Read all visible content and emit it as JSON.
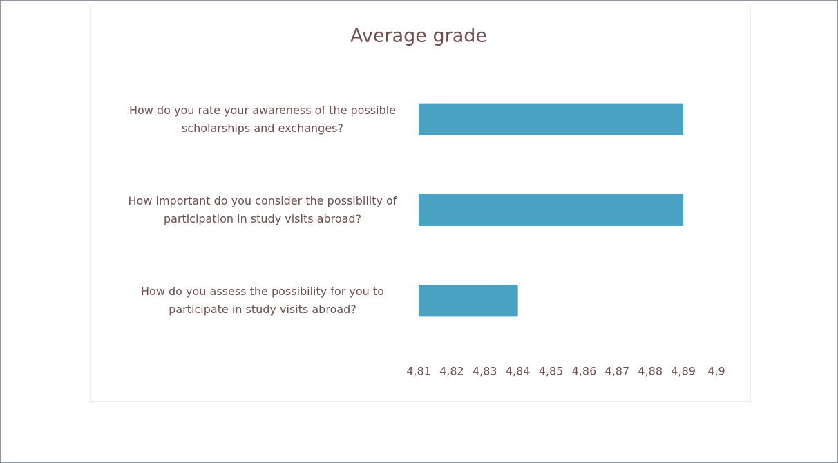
{
  "chart_data": {
    "type": "bar",
    "orientation": "horizontal",
    "title": "Average grade",
    "categories": [
      "How do you rate your awareness of the possible scholarships and exchanges?",
      "How important do you consider the possibility of participation in study visits abroad?",
      "How do you assess the possibility for you to participate in study visits abroad?"
    ],
    "values": [
      4.89,
      4.89,
      4.84
    ],
    "color": "#4ba3c3",
    "xlim": [
      4.81,
      4.9
    ],
    "xticks": [
      {
        "value": 4.81,
        "label": "4,81"
      },
      {
        "value": 4.82,
        "label": "4,82"
      },
      {
        "value": 4.83,
        "label": "4,83"
      },
      {
        "value": 4.84,
        "label": "4,84"
      },
      {
        "value": 4.85,
        "label": "4,85"
      },
      {
        "value": 4.86,
        "label": "4,86"
      },
      {
        "value": 4.87,
        "label": "4,87"
      },
      {
        "value": 4.88,
        "label": "4,88"
      },
      {
        "value": 4.89,
        "label": "4,89"
      },
      {
        "value": 4.9,
        "label": "4,9"
      }
    ],
    "grid": false
  }
}
